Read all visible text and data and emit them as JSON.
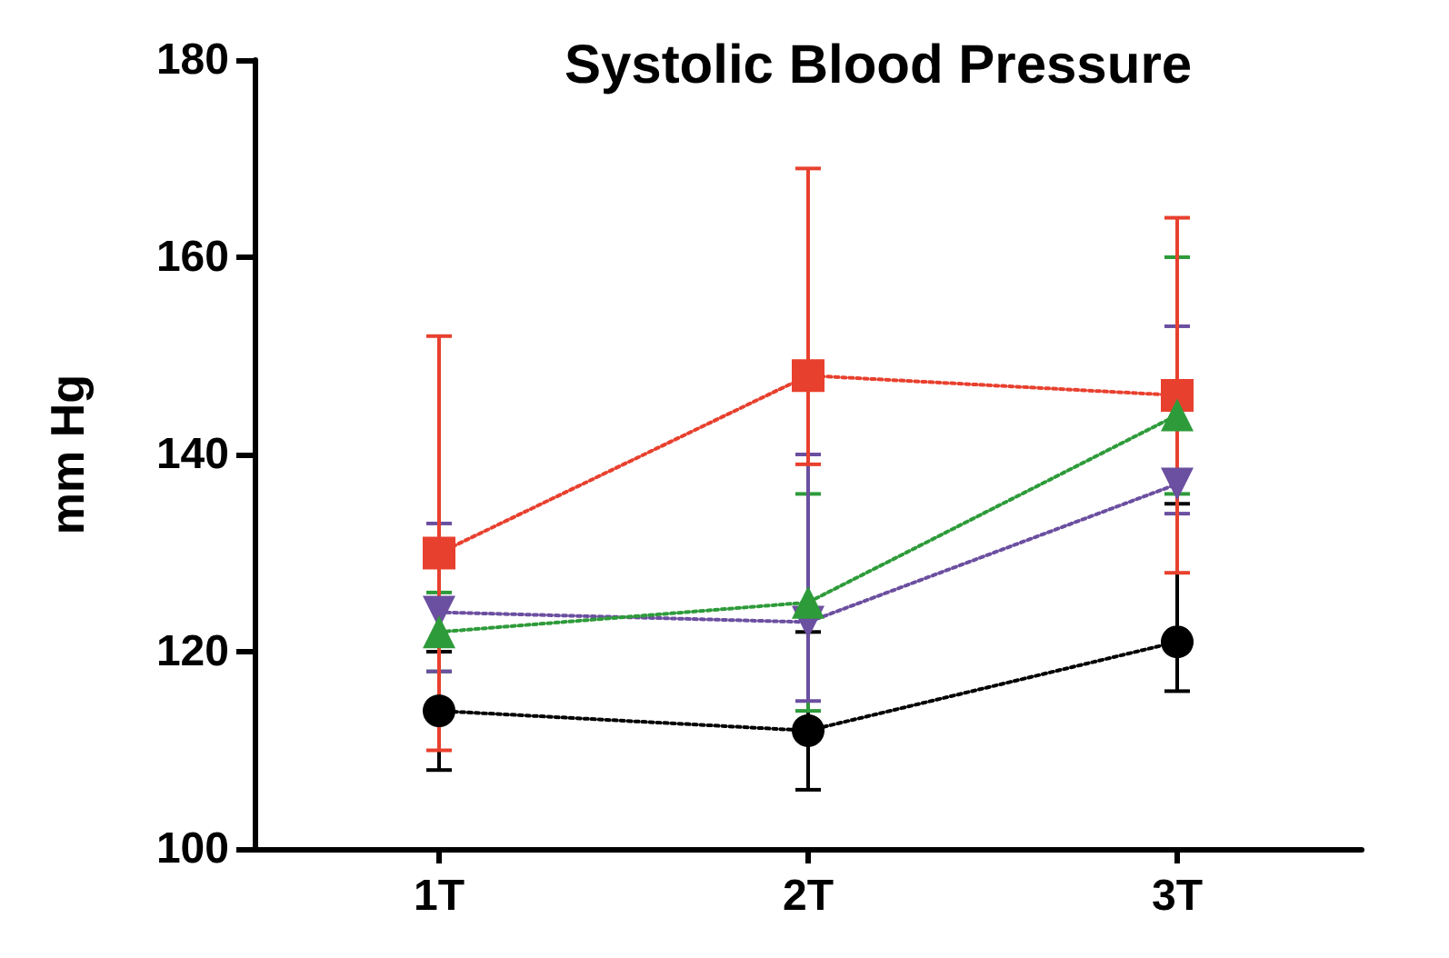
{
  "chart_data": {
    "type": "line",
    "title": "Systolic Blood Pressure",
    "ylabel": "mm Hg",
    "categories": [
      "1T",
      "2T",
      "3T"
    ],
    "ylim": [
      100,
      180
    ],
    "yticks": [
      100,
      120,
      140,
      160,
      180
    ],
    "grid": false,
    "legend": false,
    "line_style": "dotted",
    "series": [
      {
        "color": "#000000",
        "marker": "circle",
        "values": [
          114,
          112,
          121
        ],
        "errors": [
          [
            108,
            120
          ],
          [
            106,
            122
          ],
          [
            116,
            135
          ]
        ]
      },
      {
        "color": "#2e9b3a",
        "marker": "triangle",
        "values": [
          122,
          125,
          144
        ],
        "errors": [
          [
            118,
            126
          ],
          [
            114,
            136
          ],
          [
            136,
            160
          ]
        ]
      },
      {
        "color": "#6b4fa0",
        "marker": "triangle",
        "values": [
          124,
          123,
          137
        ],
        "errors": [
          [
            118,
            133
          ],
          [
            115,
            140
          ],
          [
            134,
            153
          ]
        ]
      },
      {
        "color": "#e8402e",
        "marker": "square",
        "values": [
          130,
          148,
          146
        ],
        "errors": [
          [
            110,
            152
          ],
          [
            139,
            169
          ],
          [
            128,
            164
          ]
        ]
      }
    ]
  }
}
